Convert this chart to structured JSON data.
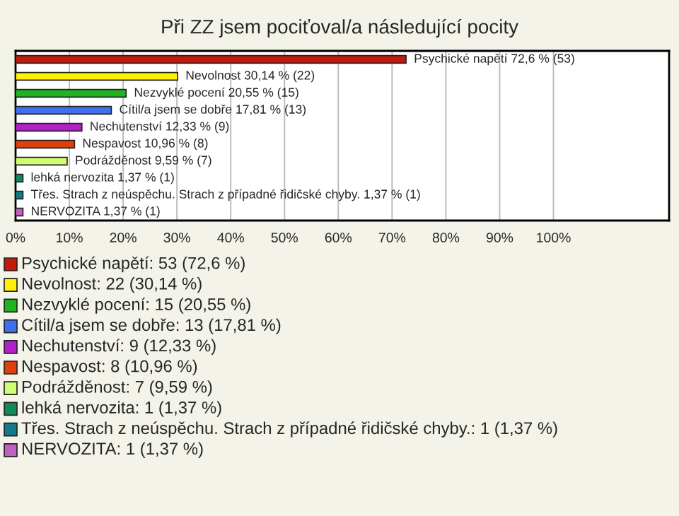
{
  "chart_data": {
    "type": "bar",
    "orientation": "horizontal",
    "title": "Při ZZ jsem pociťoval/a následující pocity",
    "categories": [
      null,
      null,
      null,
      null,
      null,
      null,
      null,
      null,
      null,
      null
    ],
    "values": [
      72.6,
      30.14,
      20.55,
      17.81,
      12.33,
      10.96,
      9.59,
      1.37,
      1.37,
      1.37
    ],
    "colors": [
      "#c41a0c",
      "#fff200",
      "#1fb31f",
      "#3f6fef",
      "#b51fc9",
      "#e0400e",
      "#cfff70",
      "#108a5a",
      "#137a8a",
      "#c060c0"
    ],
    "value_labels": [
      "Psychické napětí 72,6 % (53)",
      "Nevolnost 30,14 % (22)",
      "Nezvyklé pocení 20,55 % (15)",
      "Cítil/a jsem se dobře 17,81 % (13)",
      "Nechutenství 12,33 % (9)",
      "Nespavost 10,96 % (8)",
      "Podrážděnost 9,59 % (7)",
      "lehká nervozita 1,37 % (1)",
      "Třes. Strach z neúspěchu. Strach z případné řidičské chyby. 1,37 % (1)",
      "NERVOZITA 1,37 % (1)"
    ],
    "annotations": [
      "Psychické napětí: 53 (72,6 %)",
      "Nevolnost: 22 (30,14 %)",
      "Nezvyklé pocení: 15 (20,55 %)",
      "Cítil/a jsem se dobře: 13 (17,81 %)",
      "Nechutenství: 9 (12,33 %)",
      "Nespavost: 8 (10,96 %)",
      "Podrážděnost: 7 (9,59 %)",
      "lehká nervozita: 1 (1,37 %)",
      "Třes. Strach z neúspěchu. Strach z případné řidičské chyby.: 1 (1,37 %)",
      "NERVOZITA: 1 (1,37 %)"
    ],
    "xlim": [
      0,
      121.5
    ],
    "xticks": [
      {
        "value": 0,
        "label": "0%"
      },
      {
        "value": 10,
        "label": "10%"
      },
      {
        "value": 20,
        "label": "20%"
      },
      {
        "value": 30,
        "label": "30%"
      },
      {
        "value": 40,
        "label": "40%"
      },
      {
        "value": 50,
        "label": "50%"
      },
      {
        "value": 60,
        "label": "60%"
      },
      {
        "value": 70,
        "label": "70%"
      },
      {
        "value": 80,
        "label": "80%"
      },
      {
        "value": 90,
        "label": "90%"
      },
      {
        "value": 100,
        "label": "100%"
      }
    ],
    "grid": "x"
  }
}
